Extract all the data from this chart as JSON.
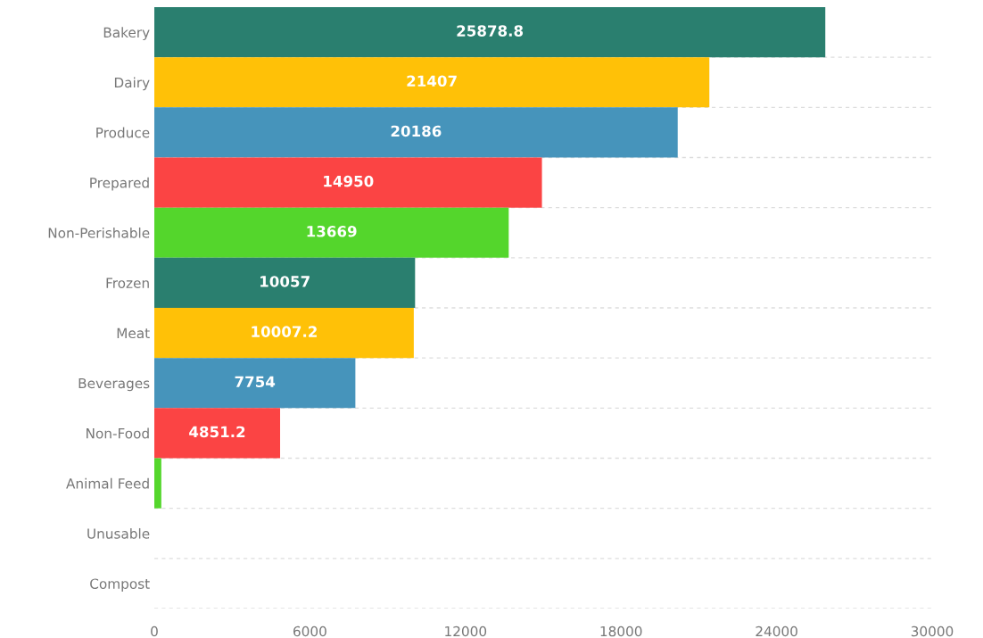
{
  "chart_data": {
    "type": "bar",
    "orientation": "horizontal",
    "categories": [
      "Bakery",
      "Dairy",
      "Produce",
      "Prepared",
      "Non-Perishable",
      "Frozen",
      "Meat",
      "Beverages",
      "Non-Food",
      "Animal Feed",
      "Unusable",
      "Compost"
    ],
    "values": [
      25878.8,
      21407,
      20186,
      14950,
      13669,
      10057,
      10007.2,
      7754,
      4851.2,
      270,
      null,
      null
    ],
    "value_labels": [
      "25878.8",
      "21407",
      "20186",
      "14950",
      "13669",
      "10057",
      "10007.2",
      "7754",
      "4851.2",
      null,
      null,
      null
    ],
    "colors": [
      "#2a7f6f",
      "#ffc107",
      "#4694bb",
      "#fb4444",
      "#54d62c",
      "#2a7f6f",
      "#ffc107",
      "#4694bb",
      "#fb4444",
      "#54d62c",
      "#2a7f6f",
      "#ffc107"
    ],
    "xlim": [
      0,
      30000
    ],
    "xticks": [
      0,
      6000,
      12000,
      18000,
      24000,
      30000
    ],
    "grid": "y"
  }
}
